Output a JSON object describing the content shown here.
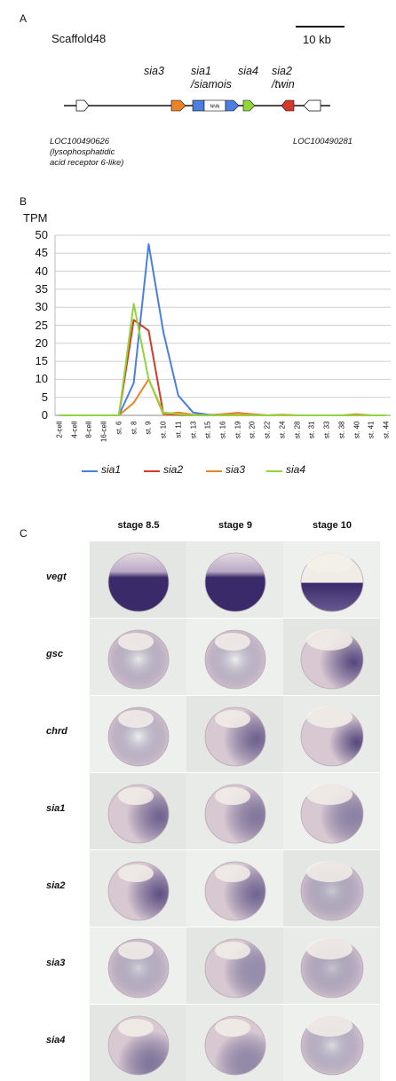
{
  "panelA": {
    "letter": "A",
    "scaffold": "Scaffold48",
    "scale_label": "10 kb",
    "genes": [
      {
        "label_line1": "sia3",
        "label_line2": "",
        "color": "#e8832a"
      },
      {
        "label_line1": "sia1",
        "label_line2": "/siamois",
        "color": "#4a7fe0"
      },
      {
        "label_line1": "sia4",
        "label_line2": "",
        "color": "#8fd63a"
      },
      {
        "label_line1": "sia2",
        "label_line2": "/twin",
        "color": "#d33a2c"
      }
    ],
    "gap_label": "NNN",
    "left_locus": [
      "LOC100490626",
      "(lysophosphatidic",
      "acid receptor 6-like)"
    ],
    "right_locus": "LOC100490281"
  },
  "panelB": {
    "letter": "B",
    "unit": "TPM"
  },
  "chart_data": {
    "type": "line",
    "title": "",
    "ylabel": "TPM",
    "xlabel": "",
    "ylim": [
      0,
      50
    ],
    "yticks": [
      0,
      5,
      10,
      15,
      20,
      25,
      30,
      35,
      40,
      45,
      50
    ],
    "grid": true,
    "legend_position": "bottom",
    "categories": [
      "2-cell",
      "4-cell",
      "8-cell",
      "16-cell",
      "st. 6",
      "st. 8",
      "st. 9",
      "st. 10",
      "st. 11",
      "st. 13",
      "st. 15",
      "st. 16",
      "st. 19",
      "st. 20",
      "st. 22",
      "st. 24",
      "st. 28",
      "st. 31",
      "st. 33",
      "st. 38",
      "st. 40",
      "st. 41",
      "st. 44"
    ],
    "series": [
      {
        "name": "sia1",
        "color": "#4a7fe0",
        "values": [
          0,
          0,
          0,
          0,
          0,
          9,
          47.5,
          23,
          5.5,
          0.8,
          0.2,
          0.1,
          0,
          0,
          0,
          0,
          0,
          0,
          0,
          0,
          0,
          0,
          0
        ]
      },
      {
        "name": "sia2",
        "color": "#d33a2c",
        "values": [
          0,
          0,
          0,
          0,
          0,
          26.5,
          23.5,
          0.3,
          0.1,
          0,
          0,
          0.3,
          0.7,
          0.3,
          0,
          0.1,
          0,
          0,
          0,
          0,
          0,
          0,
          0
        ]
      },
      {
        "name": "sia3",
        "color": "#e8832a",
        "values": [
          0,
          0,
          0,
          0,
          0,
          3.5,
          10,
          0.3,
          0.8,
          0.2,
          0,
          0.3,
          0.6,
          0.3,
          0,
          0.2,
          0,
          0,
          0,
          0,
          0.3,
          0,
          0
        ]
      },
      {
        "name": "sia4",
        "color": "#8fd63a",
        "values": [
          0,
          0,
          0,
          0,
          0,
          31,
          10,
          0.8,
          0.3,
          0,
          0,
          0,
          0,
          0,
          0,
          0,
          0,
          0,
          0,
          0,
          0,
          0,
          0
        ]
      }
    ]
  },
  "panelC": {
    "letter": "C",
    "stages": [
      "stage 8.5",
      "stage 9",
      "stage 10"
    ],
    "rows": [
      "vegt",
      "gsc",
      "chrd",
      "sia1",
      "sia2",
      "sia3",
      "sia4"
    ]
  },
  "colors": {
    "embryo_purple": "#3a2a6a",
    "embryo_light": "#d9c9d2",
    "tile_bg": "#e9ebe8"
  }
}
